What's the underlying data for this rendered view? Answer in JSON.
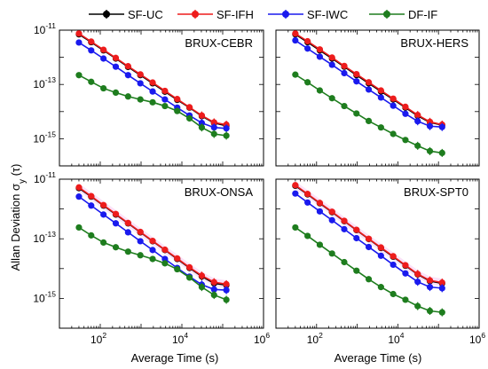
{
  "chart_data": [
    {
      "type": "line",
      "title": "BRUX-CEBR",
      "x": [
        30,
        60,
        120,
        240,
        480,
        960,
        1920,
        3840,
        7680,
        15360,
        30720,
        61440,
        122880
      ],
      "xscale": "log",
      "yscale": "log",
      "xlim": [
        10,
        1000000
      ],
      "ylim": [
        1e-16,
        1e-11
      ],
      "series": [
        {
          "name": "SF-UC",
          "values": [
            7e-12,
            3.6e-12,
            1.8e-12,
            9e-13,
            4.4e-13,
            2.2e-13,
            1.1e-13,
            5.4e-14,
            2.7e-14,
            1.4e-14,
            6.8e-15,
            3.8e-15,
            3e-15
          ]
        },
        {
          "name": "SF-IFH",
          "values": [
            7.5e-12,
            3.8e-12,
            1.9e-12,
            9.5e-13,
            4.7e-13,
            2.35e-13,
            1.18e-13,
            5.8e-14,
            2.9e-14,
            1.45e-14,
            7.2e-15,
            4e-15,
            3.3e-15
          ]
        },
        {
          "name": "SF-IWC",
          "values": [
            3.5e-12,
            1.8e-12,
            9e-13,
            4.5e-13,
            2.2e-13,
            1.1e-13,
            5.5e-14,
            2.8e-14,
            1.4e-14,
            7.2e-15,
            3.8e-15,
            2.6e-15,
            2.4e-15
          ]
        },
        {
          "name": "DF-IF",
          "values": [
            2.2e-13,
            1.25e-13,
            7.2e-14,
            5e-14,
            3.6e-14,
            2.8e-14,
            2.2e-14,
            1.6e-14,
            1.05e-14,
            5.6e-15,
            2.6e-15,
            1.5e-15,
            1.3e-15
          ]
        }
      ]
    },
    {
      "type": "line",
      "title": "BRUX-HERS",
      "x": [
        30,
        60,
        120,
        240,
        480,
        960,
        1920,
        3840,
        7680,
        15360,
        30720,
        61440,
        122880
      ],
      "xscale": "log",
      "yscale": "log",
      "xlim": [
        10,
        1000000
      ],
      "ylim": [
        1e-16,
        1e-11
      ],
      "series": [
        {
          "name": "SF-UC",
          "values": [
            7e-12,
            3.6e-12,
            1.8e-12,
            9e-13,
            4.5e-13,
            2.2e-13,
            1.1e-13,
            5.5e-14,
            2.8e-14,
            1.4e-14,
            7e-15,
            4e-15,
            3.2e-15
          ]
        },
        {
          "name": "SF-IFH",
          "values": [
            7.5e-12,
            3.9e-12,
            1.95e-12,
            9.8e-13,
            4.8e-13,
            2.4e-13,
            1.2e-13,
            6e-14,
            3e-14,
            1.5e-14,
            7.5e-15,
            4.2e-15,
            3.3e-15
          ]
        },
        {
          "name": "SF-IWC",
          "values": [
            4.2e-12,
            2.1e-12,
            1.05e-12,
            5.3e-13,
            2.6e-13,
            1.3e-13,
            6.5e-14,
            3.3e-14,
            1.65e-14,
            8.3e-15,
            4.4e-15,
            2.9e-15,
            2.7e-15
          ]
        },
        {
          "name": "DF-IF",
          "values": [
            2.3e-13,
            1.2e-13,
            6e-14,
            3.1e-14,
            1.6e-14,
            8.5e-15,
            4.5e-15,
            2.6e-15,
            1.5e-15,
            9e-16,
            5.5e-16,
            3.5e-16,
            3e-16
          ]
        }
      ]
    },
    {
      "type": "line",
      "title": "BRUX-ONSA",
      "x": [
        30,
        60,
        120,
        240,
        480,
        960,
        1920,
        3840,
        7680,
        15360,
        30720,
        61440,
        122880
      ],
      "xscale": "log",
      "yscale": "log",
      "xlim": [
        10,
        1000000
      ],
      "ylim": [
        1e-16,
        1e-11
      ],
      "series": [
        {
          "name": "SF-UC",
          "values": [
            5e-12,
            2.6e-12,
            1.3e-12,
            6.5e-13,
            3.3e-13,
            1.65e-13,
            8.3e-14,
            4.2e-14,
            2.1e-14,
            1.05e-14,
            5.5e-15,
            3.2e-15,
            2.8e-15
          ]
        },
        {
          "name": "SF-IFH",
          "values": [
            5.3e-12,
            2.7e-12,
            1.35e-12,
            6.8e-13,
            3.4e-13,
            1.7e-13,
            8.5e-14,
            4.3e-14,
            2.2e-14,
            1.1e-14,
            5.8e-15,
            3.5e-15,
            3e-15
          ]
        },
        {
          "name": "SF-IWC",
          "values": [
            2.6e-12,
            1.3e-12,
            6.5e-13,
            3.3e-13,
            1.65e-13,
            8.3e-14,
            4.2e-14,
            2.1e-14,
            1.05e-14,
            5.4e-15,
            2.9e-15,
            2e-15,
            1.9e-15
          ]
        },
        {
          "name": "DF-IF",
          "values": [
            2.4e-13,
            1.3e-13,
            7.5e-14,
            5.2e-14,
            3.7e-14,
            2.8e-14,
            2.1e-14,
            1.5e-14,
            9.5e-15,
            5e-15,
            2.4e-15,
            1.3e-15,
            9e-16
          ]
        }
      ]
    },
    {
      "type": "line",
      "title": "BRUX-SPT0",
      "x": [
        30,
        60,
        120,
        240,
        480,
        960,
        1920,
        3840,
        7680,
        15360,
        30720,
        61440,
        122880
      ],
      "xscale": "log",
      "yscale": "log",
      "xlim": [
        10,
        1000000
      ],
      "ylim": [
        1e-16,
        1e-11
      ],
      "series": [
        {
          "name": "SF-UC",
          "values": [
            6e-12,
            3.1e-12,
            1.55e-12,
            7.8e-13,
            3.9e-13,
            1.95e-13,
            9.8e-14,
            4.9e-14,
            2.5e-14,
            1.25e-14,
            6.4e-15,
            3.8e-15,
            3.2e-15
          ]
        },
        {
          "name": "SF-IFH",
          "values": [
            6.3e-12,
            3.2e-12,
            1.6e-12,
            8.1e-13,
            4e-13,
            2e-13,
            1e-13,
            5.1e-14,
            2.6e-14,
            1.3e-14,
            6.6e-15,
            4e-15,
            3.4e-15
          ]
        },
        {
          "name": "SF-IWC",
          "values": [
            3.3e-12,
            1.65e-12,
            8.3e-13,
            4.2e-13,
            2.1e-13,
            1.05e-13,
            5.3e-14,
            2.7e-14,
            1.35e-14,
            6.9e-15,
            3.6e-15,
            2.4e-15,
            2.2e-15
          ]
        },
        {
          "name": "DF-IF",
          "values": [
            2.4e-13,
            1.25e-13,
            6.3e-14,
            3.2e-14,
            1.65e-14,
            8.5e-15,
            4.4e-15,
            2.4e-15,
            1.4e-15,
            9e-16,
            5.5e-16,
            3.8e-16,
            3.4e-16
          ]
        }
      ]
    }
  ],
  "legend": {
    "position": "top",
    "items": [
      {
        "label": "SF-UC",
        "color": "#000000"
      },
      {
        "label": "SF-IFH",
        "color": "#ee1c1c"
      },
      {
        "label": "SF-IWC",
        "color": "#1a1aee"
      },
      {
        "label": "DF-IF",
        "color": "#1e7d1e"
      }
    ]
  },
  "axes": {
    "xlabel": "Average Time (s)",
    "ylabel_main": "Allan Deviation σ",
    "ylabel_sub": "y",
    "ylabel_tail": " (τ)",
    "xticks": [
      {
        "base": "10",
        "exp": "2",
        "value": 100
      },
      {
        "base": "10",
        "exp": "4",
        "value": 10000
      },
      {
        "base": "10",
        "exp": "6",
        "value": 1000000
      }
    ],
    "yticks": [
      {
        "base": "10",
        "exp": "-11",
        "value": 1e-11
      },
      {
        "base": "10",
        "exp": "-13",
        "value": 1e-13
      },
      {
        "base": "10",
        "exp": "-15",
        "value": 1e-15
      }
    ]
  },
  "colors": {
    "SF-UC": "#000000",
    "SF-IFH": "#ee1c1c",
    "SF-IWC": "#1a1aee",
    "DF-IF": "#1e7d1e",
    "uncertainty_band": "#f7c8f0"
  }
}
